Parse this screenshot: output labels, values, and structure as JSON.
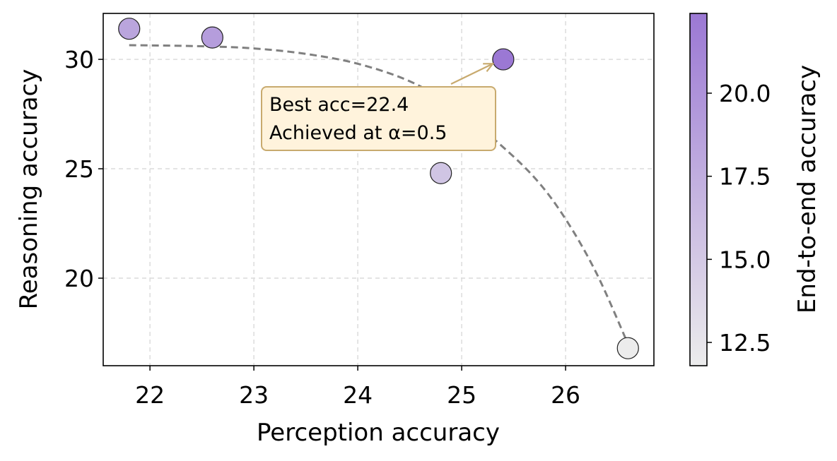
{
  "chart_data": {
    "type": "scatter",
    "xlabel": "Perception accuracy",
    "ylabel": "Reasoning accuracy",
    "xlim": [
      21.55,
      26.85
    ],
    "ylim": [
      16.0,
      32.1
    ],
    "xticks": [
      22,
      23,
      24,
      25,
      26
    ],
    "yticks": [
      20,
      25,
      30
    ],
    "grid": true,
    "points": [
      {
        "x": 21.8,
        "y": 31.4,
        "color_value": 18.3
      },
      {
        "x": 22.6,
        "y": 31.0,
        "color_value": 19.0
      },
      {
        "x": 25.4,
        "y": 30.0,
        "color_value": 22.4
      },
      {
        "x": 24.8,
        "y": 24.8,
        "color_value": 15.4
      },
      {
        "x": 26.6,
        "y": 16.8,
        "color_value": 11.8
      }
    ],
    "trend_curve": {
      "style": "dashed",
      "color": "#808080",
      "points": [
        [
          21.8,
          30.65
        ],
        [
          22.5,
          30.6
        ],
        [
          23.0,
          30.5
        ],
        [
          23.5,
          30.25
        ],
        [
          24.0,
          29.8
        ],
        [
          24.5,
          29.0
        ],
        [
          24.9,
          27.9
        ],
        [
          25.3,
          26.4
        ],
        [
          25.7,
          24.6
        ],
        [
          26.0,
          22.7
        ],
        [
          26.3,
          20.2
        ],
        [
          26.6,
          17.0
        ]
      ]
    },
    "annotation": {
      "line1": "Best  acc=22.4",
      "line2": "Achieved at α=0.5",
      "target": {
        "x": 25.3,
        "y": 29.8
      },
      "arrow_color": "#c8aa6e",
      "box_fill": "#fff3dc",
      "box_edge": "#c8aa6e"
    },
    "colorbar": {
      "label": "End-to-end accuracy",
      "min": 11.8,
      "max": 22.4,
      "ticks": [
        12.5,
        15.0,
        17.5,
        20.0
      ],
      "low_color": "#ececec",
      "high_color": "#9b78d4"
    }
  }
}
